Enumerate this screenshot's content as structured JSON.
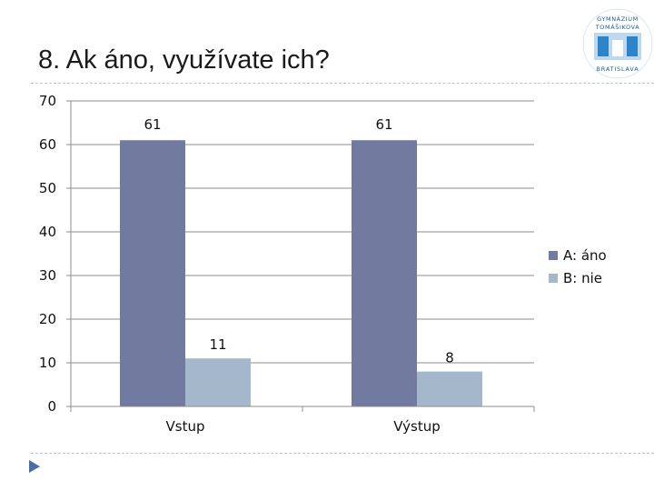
{
  "slide": {
    "title": "8. Ak áno, využívate ich?"
  },
  "logo": {
    "line1": "GYMNÁZIUM",
    "line2": "TOMÁŠIKOVA",
    "line3": "BRATISLAVA"
  },
  "chart_data": {
    "type": "bar",
    "categories": [
      "Vstup",
      "Výstup"
    ],
    "series": [
      {
        "name": "A: áno",
        "values": [
          61,
          61
        ],
        "color": "#717ba0"
      },
      {
        "name": "B: nie",
        "values": [
          11,
          8
        ],
        "color": "#a5b7ca"
      }
    ],
    "ylim": [
      0,
      70
    ],
    "yticks": [
      0,
      10,
      20,
      30,
      40,
      50,
      60,
      70
    ],
    "grid": true,
    "legend": "right",
    "title": "",
    "xlabel": "",
    "ylabel": ""
  }
}
